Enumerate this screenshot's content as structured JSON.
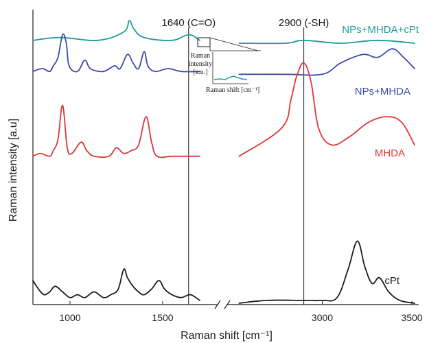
{
  "chart_data": {
    "type": "line",
    "title": "",
    "xlabel": "Raman shift [cm⁻¹]",
    "ylabel": "Raman intensity [a.u]",
    "axis_break": true,
    "x_ticks_left": [
      1000,
      1500
    ],
    "x_ticks_right": [
      3000,
      3500
    ],
    "xlim_left": [
      800,
      1800
    ],
    "xlim_right": [
      2500,
      3500
    ],
    "annotations": [
      {
        "text": "1640 (C=O)",
        "x": 1640
      },
      {
        "text": "2900 (-SH)",
        "x": 2900
      }
    ],
    "inset": {
      "ylabel_lines": [
        "Raman",
        "intensity",
        "[a.u.]"
      ],
      "xlabel": "Raman shift [cm⁻¹]"
    },
    "series": [
      {
        "name": "NPs+MHDA+cPt",
        "color": "#1e9a9a",
        "left": [
          [
            800,
            0.93
          ],
          [
            950,
            0.94
          ],
          [
            1150,
            0.93
          ],
          [
            1290,
            0.96
          ],
          [
            1320,
            1.0
          ],
          [
            1345,
            0.97
          ],
          [
            1400,
            0.94
          ],
          [
            1550,
            0.93
          ],
          [
            1640,
            0.95
          ],
          [
            1700,
            0.93
          ]
        ],
        "right": [
          [
            2550,
            0.92
          ],
          [
            2800,
            0.92
          ],
          [
            2900,
            0.93
          ],
          [
            3100,
            0.92
          ],
          [
            3300,
            0.93
          ],
          [
            3500,
            0.92
          ]
        ]
      },
      {
        "name": "NPs+MHDA",
        "color": "#3a49a8",
        "left": [
          [
            800,
            0.82
          ],
          [
            850,
            0.83
          ],
          [
            890,
            0.82
          ],
          [
            910,
            0.84
          ],
          [
            935,
            0.87
          ],
          [
            960,
            0.95
          ],
          [
            980,
            0.92
          ],
          [
            995,
            0.84
          ],
          [
            1040,
            0.82
          ],
          [
            1080,
            0.86
          ],
          [
            1110,
            0.83
          ],
          [
            1180,
            0.82
          ],
          [
            1240,
            0.84
          ],
          [
            1270,
            0.83
          ],
          [
            1310,
            0.88
          ],
          [
            1340,
            0.85
          ],
          [
            1370,
            0.83
          ],
          [
            1400,
            0.89
          ],
          [
            1420,
            0.84
          ],
          [
            1460,
            0.82
          ],
          [
            1530,
            0.83
          ],
          [
            1600,
            0.82
          ],
          [
            1700,
            0.82
          ]
        ],
        "right": [
          [
            2550,
            0.81
          ],
          [
            2800,
            0.81
          ],
          [
            3000,
            0.81
          ],
          [
            3100,
            0.85
          ],
          [
            3220,
            0.88
          ],
          [
            3300,
            0.87
          ],
          [
            3380,
            0.9
          ],
          [
            3440,
            0.87
          ],
          [
            3500,
            0.83
          ]
        ]
      },
      {
        "name": "MHDA",
        "color": "#e03535",
        "left": [
          [
            800,
            0.52
          ],
          [
            840,
            0.53
          ],
          [
            890,
            0.52
          ],
          [
            910,
            0.54
          ],
          [
            935,
            0.58
          ],
          [
            960,
            0.7
          ],
          [
            985,
            0.55
          ],
          [
            1010,
            0.53
          ],
          [
            1060,
            0.57
          ],
          [
            1090,
            0.54
          ],
          [
            1130,
            0.52
          ],
          [
            1210,
            0.52
          ],
          [
            1250,
            0.55
          ],
          [
            1290,
            0.53
          ],
          [
            1330,
            0.54
          ],
          [
            1370,
            0.56
          ],
          [
            1410,
            0.66
          ],
          [
            1440,
            0.57
          ],
          [
            1470,
            0.52
          ],
          [
            1550,
            0.52
          ],
          [
            1650,
            0.52
          ],
          [
            1700,
            0.52
          ]
        ],
        "right": [
          [
            2550,
            0.52
          ],
          [
            2780,
            0.62
          ],
          [
            2830,
            0.72
          ],
          [
            2860,
            0.8
          ],
          [
            2900,
            0.85
          ],
          [
            2940,
            0.78
          ],
          [
            2980,
            0.62
          ],
          [
            3050,
            0.56
          ],
          [
            3150,
            0.59
          ],
          [
            3250,
            0.64
          ],
          [
            3350,
            0.66
          ],
          [
            3430,
            0.64
          ],
          [
            3500,
            0.56
          ]
        ]
      },
      {
        "name": "cPt",
        "color": "#1a1a1a",
        "left": [
          [
            800,
            0.08
          ],
          [
            830,
            0.05
          ],
          [
            860,
            0.03
          ],
          [
            890,
            0.04
          ],
          [
            920,
            0.06
          ],
          [
            960,
            0.04
          ],
          [
            1000,
            0.02
          ],
          [
            1040,
            0.03
          ],
          [
            1080,
            0.02
          ],
          [
            1130,
            0.04
          ],
          [
            1180,
            0.02
          ],
          [
            1220,
            0.03
          ],
          [
            1260,
            0.05
          ],
          [
            1290,
            0.12
          ],
          [
            1310,
            0.09
          ],
          [
            1340,
            0.06
          ],
          [
            1370,
            0.04
          ],
          [
            1400,
            0.03
          ],
          [
            1440,
            0.05
          ],
          [
            1480,
            0.08
          ],
          [
            1510,
            0.05
          ],
          [
            1550,
            0.03
          ],
          [
            1600,
            0.02
          ],
          [
            1650,
            0.03
          ],
          [
            1700,
            0.01
          ]
        ],
        "right": [
          [
            2550,
            0.0
          ],
          [
            2700,
            0.01
          ],
          [
            2900,
            0.01
          ],
          [
            3000,
            0.01
          ],
          [
            3080,
            0.02
          ],
          [
            3140,
            0.12
          ],
          [
            3190,
            0.22
          ],
          [
            3230,
            0.13
          ],
          [
            3270,
            0.07
          ],
          [
            3310,
            0.09
          ],
          [
            3360,
            0.04
          ],
          [
            3420,
            0.01
          ],
          [
            3500,
            0.0
          ]
        ]
      }
    ]
  }
}
